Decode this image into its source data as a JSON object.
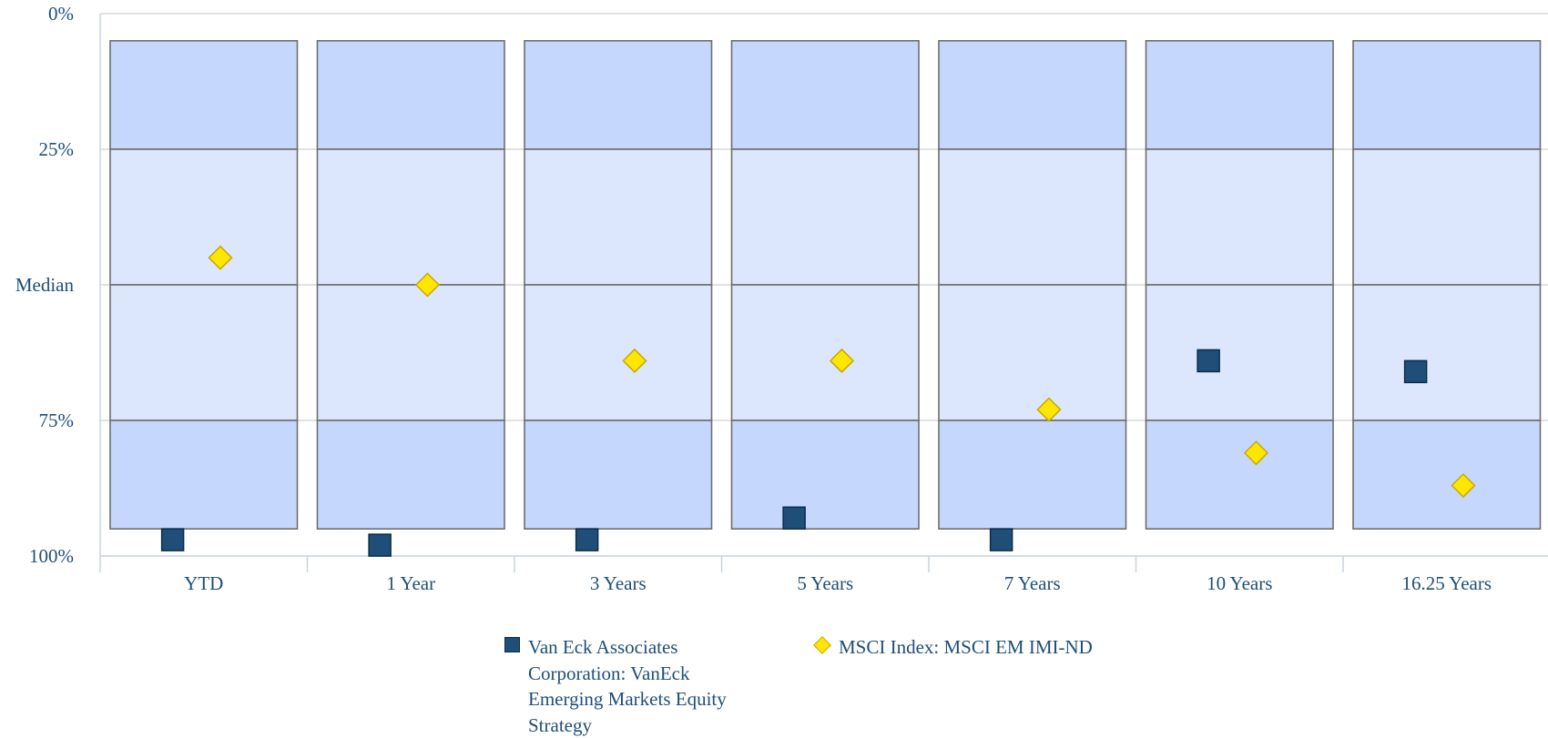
{
  "chart_data": {
    "type": "floating-bar-percentile",
    "y_axis": {
      "inverted": true,
      "ticks": [
        {
          "value": 0,
          "label": "0%"
        },
        {
          "value": 25,
          "label": "25%"
        },
        {
          "value": 50,
          "label": "Median"
        },
        {
          "value": 75,
          "label": "75%"
        },
        {
          "value": 100,
          "label": "100%"
        }
      ],
      "range": [
        0,
        100
      ]
    },
    "categories": [
      "YTD",
      "1 Year",
      "3 Years",
      "5 Years",
      "7 Years",
      "10 Years",
      "16.25 Years"
    ],
    "band_bounds": [
      5,
      25,
      50,
      75,
      95
    ],
    "band_colors": [
      "#C5D7FC",
      "#DCE6FC",
      "#DCE6FC",
      "#C5D7FC"
    ],
    "grid": true,
    "series": [
      {
        "name": "Van Eck Associates Corporation: VanEck Emerging Markets Equity Strategy",
        "marker": "square",
        "color": "#1F4E79",
        "values": [
          97,
          98,
          97,
          93,
          97,
          64,
          66
        ]
      },
      {
        "name": "MSCI Index: MSCI EM IMI-ND",
        "marker": "diamond",
        "color": "#FFE600",
        "values": [
          45,
          50,
          64,
          64,
          73,
          81,
          87
        ]
      }
    ],
    "legend_position": "bottom"
  }
}
